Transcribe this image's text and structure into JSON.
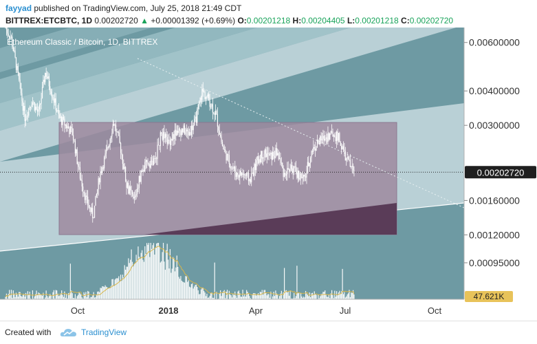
{
  "header": {
    "user": "fayyad",
    "published_text": "published on TradingView.com, July 25, 2018 21:49 CDT",
    "symbol": "BITTREX:ETCBTC, 1D",
    "last": "0.00202720",
    "change_arrow": "▲",
    "change": "+0.00001392 (+0.69%)",
    "o_label": "O:",
    "o_value": "0.00201218",
    "h_label": "H:",
    "h_value": "0.00204405",
    "l_label": "L:",
    "l_value": "0.00201218",
    "c_label": "C:",
    "c_value": "0.00202720"
  },
  "footer": {
    "created_with": "Created with",
    "brand": "TradingView",
    "brand_icon": "tradingview-cloud-icon"
  },
  "colors": {
    "chart_bg": "#6e9aa3",
    "band_light": "#b9d0d6",
    "rect_fill": "#9e8a9f",
    "rect_dark": "#5a3c58",
    "candle": "#ffffff",
    "price_label_bg": "#1f1f1f",
    "volume": "#ffffff",
    "volume_ma": "#d9b64a"
  },
  "chart_data": {
    "type": "candlestick",
    "title": "Ethereum Classic / Bitcoin, 1D, BITTREX",
    "x_labels": [
      "Oct",
      "2018",
      "Apr",
      "Jul",
      "Oct"
    ],
    "y_ticks": [
      "0.00600000",
      "0.00400000",
      "0.00300000",
      "0.00160000",
      "0.00120000",
      "0.00095000"
    ],
    "y_scale": "log",
    "ylim": [
      0.0007,
      0.0068
    ],
    "current_price_label": "0.00202720",
    "volume_label": "47.621K",
    "close_path": [
      [
        "2017-08-01",
        0.0068
      ],
      [
        "2017-08-07",
        0.0062
      ],
      [
        "2017-08-14",
        0.0045
      ],
      [
        "2017-08-21",
        0.0032
      ],
      [
        "2017-08-28",
        0.0037
      ],
      [
        "2017-09-04",
        0.0033
      ],
      [
        "2017-09-11",
        0.0047
      ],
      [
        "2017-09-18",
        0.0039
      ],
      [
        "2017-09-25",
        0.0032
      ],
      [
        "2017-10-02",
        0.003
      ],
      [
        "2017-10-09",
        0.0028
      ],
      [
        "2017-10-16",
        0.002
      ],
      [
        "2017-10-23",
        0.0016
      ],
      [
        "2017-10-30",
        0.0014
      ],
      [
        "2017-11-06",
        0.002
      ],
      [
        "2017-11-13",
        0.0024
      ],
      [
        "2017-11-20",
        0.0031
      ],
      [
        "2017-11-27",
        0.0025
      ],
      [
        "2017-12-04",
        0.0018
      ],
      [
        "2017-12-11",
        0.0016
      ],
      [
        "2017-12-18",
        0.002
      ],
      [
        "2017-12-25",
        0.0022
      ],
      [
        "2018-01-01",
        0.0022
      ],
      [
        "2018-01-08",
        0.0028
      ],
      [
        "2018-01-15",
        0.0026
      ],
      [
        "2018-01-22",
        0.0028
      ],
      [
        "2018-01-29",
        0.0029
      ],
      [
        "2018-02-05",
        0.0028
      ],
      [
        "2018-02-12",
        0.0031
      ],
      [
        "2018-02-19",
        0.004
      ],
      [
        "2018-02-26",
        0.0037
      ],
      [
        "2018-03-05",
        0.0033
      ],
      [
        "2018-03-12",
        0.0025
      ],
      [
        "2018-03-19",
        0.0022
      ],
      [
        "2018-03-26",
        0.002
      ],
      [
        "2018-04-02",
        0.002
      ],
      [
        "2018-04-09",
        0.0019
      ],
      [
        "2018-04-16",
        0.0022
      ],
      [
        "2018-04-23",
        0.0024
      ],
      [
        "2018-04-30",
        0.0023
      ],
      [
        "2018-05-07",
        0.0024
      ],
      [
        "2018-05-14",
        0.002
      ],
      [
        "2018-05-21",
        0.0021
      ],
      [
        "2018-05-28",
        0.002
      ],
      [
        "2018-06-04",
        0.0019
      ],
      [
        "2018-06-11",
        0.0024
      ],
      [
        "2018-06-18",
        0.0026
      ],
      [
        "2018-06-25",
        0.0027
      ],
      [
        "2018-07-02",
        0.0028
      ],
      [
        "2018-07-09",
        0.0027
      ],
      [
        "2018-07-16",
        0.0023
      ],
      [
        "2018-07-25",
        0.0020272
      ]
    ]
  }
}
